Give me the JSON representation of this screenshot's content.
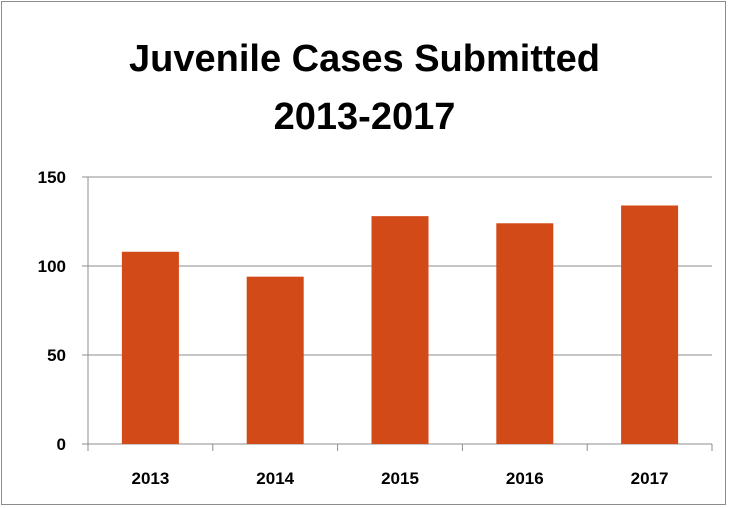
{
  "chart_data": {
    "type": "bar",
    "title": "Juvenile Cases Submitted",
    "subtitle": "2013-2017",
    "categories": [
      "2013",
      "2014",
      "2015",
      "2016",
      "2017"
    ],
    "values": [
      108,
      94,
      128,
      124,
      134
    ],
    "ylim": [
      0,
      150
    ],
    "yticks": [
      0,
      50,
      100,
      150
    ],
    "grid": true,
    "bar_color": "#D24A18",
    "legend": "none"
  }
}
